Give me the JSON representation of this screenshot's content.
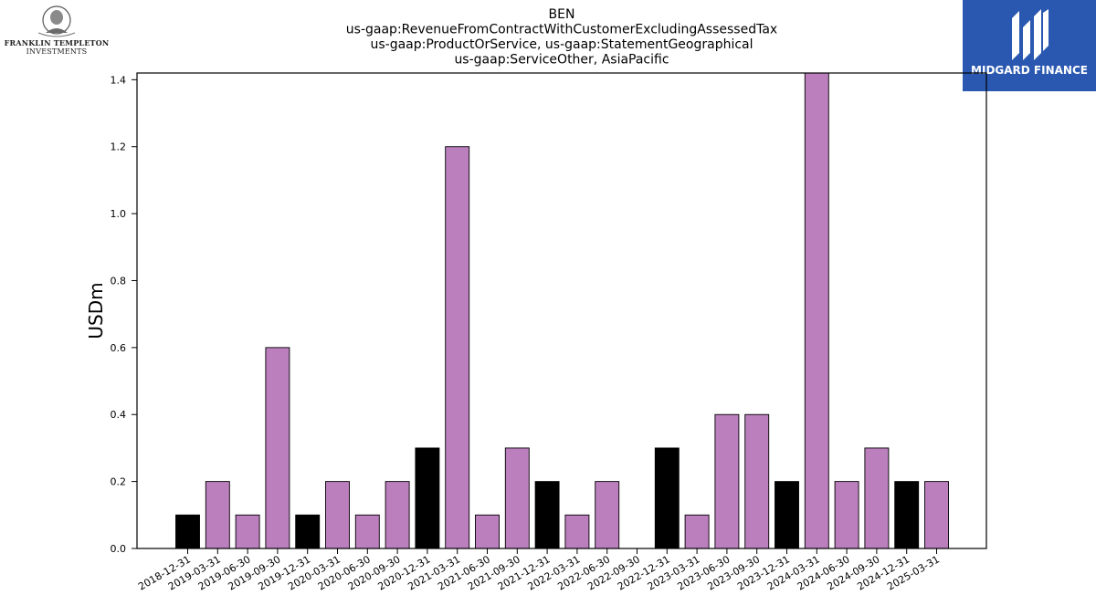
{
  "logos": {
    "left": {
      "line1": "FRANKLIN TEMPLETON",
      "line2": "INVESTMENTS",
      "icon": "portrait-icon"
    },
    "right": {
      "text": "MIDGARD FINANCE",
      "icon": "midgard-logo-icon",
      "background": "#2a58b0"
    }
  },
  "chart_data": {
    "type": "bar",
    "title": [
      "BEN",
      "us-gaap:RevenueFromContractWithCustomerExcludingAssessedTax",
      "us-gaap:ProductOrService, us-gaap:StatementGeographical",
      "us-gaap:ServiceOther, AsiaPacific"
    ],
    "xlabel": "",
    "ylabel": "USDm",
    "ylim": [
      0,
      1.42
    ],
    "yticks": [
      "0.0",
      "0.2",
      "0.4",
      "0.6",
      "0.8",
      "1.0",
      "1.2",
      "1.4"
    ],
    "ytick_values": [
      0,
      0.2,
      0.4,
      0.6,
      0.8,
      1.0,
      1.2,
      1.4
    ],
    "grid": false,
    "colors": {
      "annual": "#000000",
      "quarterly": "#bb7fbd"
    },
    "categories": [
      "2018-12-31",
      "2019-03-31",
      "2019-06-30",
      "2019-09-30",
      "2019-12-31",
      "2020-03-31",
      "2020-06-30",
      "2020-09-30",
      "2020-12-31",
      "2021-03-31",
      "2021-06-30",
      "2021-09-30",
      "2021-12-31",
      "2022-03-31",
      "2022-06-30",
      "2022-09-30",
      "2022-12-31",
      "2023-03-31",
      "2023-06-30",
      "2023-09-30",
      "2023-12-31",
      "2024-03-31",
      "2024-06-30",
      "2024-09-30",
      "2024-12-31",
      "2025-03-31"
    ],
    "values": [
      0.1,
      0.2,
      0.1,
      0.6,
      0.1,
      0.2,
      0.1,
      0.2,
      0.3,
      1.2,
      0.1,
      0.3,
      0.2,
      0.1,
      0.2,
      0.0,
      0.3,
      0.1,
      0.4,
      0.4,
      0.2,
      1.42,
      0.2,
      0.3,
      0.2,
      0.2
    ],
    "bar_kind": [
      "annual",
      "quarterly",
      "quarterly",
      "quarterly",
      "annual",
      "quarterly",
      "quarterly",
      "quarterly",
      "annual",
      "quarterly",
      "quarterly",
      "quarterly",
      "annual",
      "quarterly",
      "quarterly",
      "quarterly",
      "annual",
      "quarterly",
      "quarterly",
      "quarterly",
      "annual",
      "quarterly",
      "quarterly",
      "quarterly",
      "annual",
      "quarterly"
    ]
  }
}
